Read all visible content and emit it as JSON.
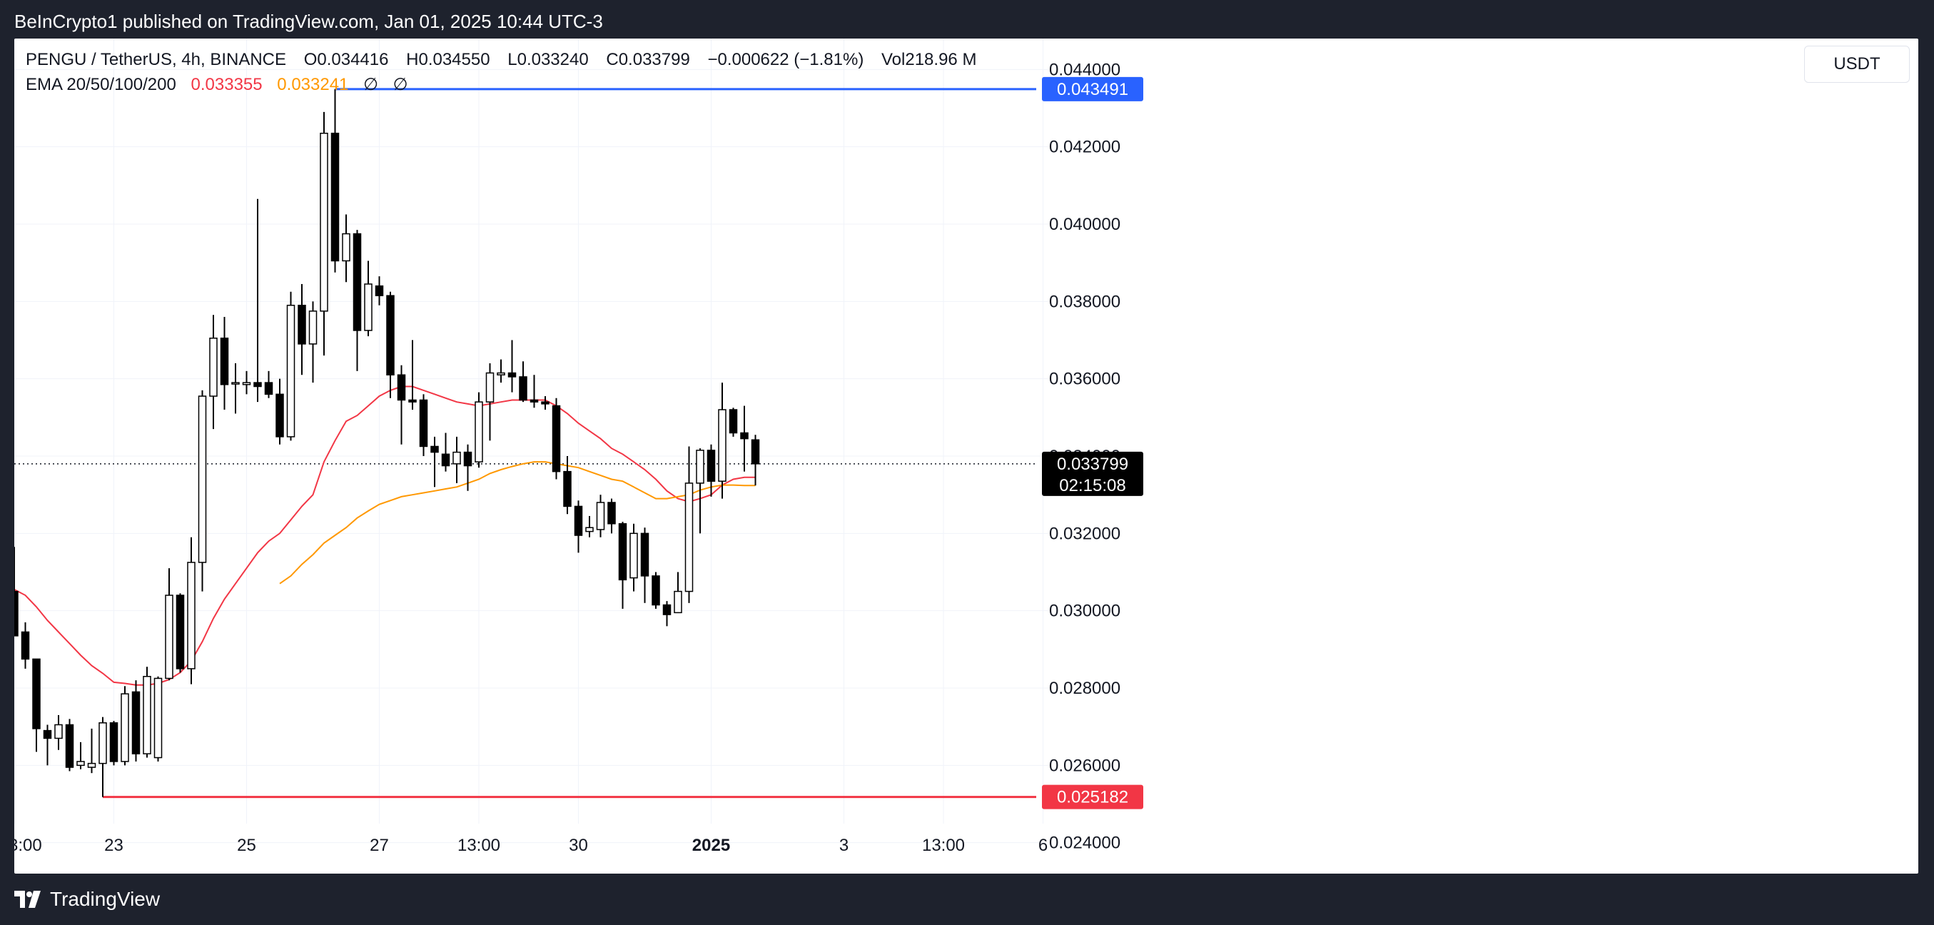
{
  "header": {
    "published": "BeInCrypto1 published on TradingView.com, Jan 01, 2025 10:44 UTC-3"
  },
  "legend": {
    "symbol": "PENGU / TetherUS, 4h, BINANCE",
    "open": "O0.034416",
    "high": "H0.034550",
    "low": "L0.033240",
    "close": "C0.033799",
    "change": "−0.000622 (−1.81%)",
    "volume": "Vol218.96 M",
    "ema_label": "EMA 20/50/100/200",
    "ema20": "0.033355",
    "ema50": "0.033241",
    "ema100": "∅",
    "ema200": "∅"
  },
  "currency": "USDT",
  "footer": {
    "brand": "TradingView"
  },
  "colors": {
    "up_body": "#ffffff",
    "down_body": "#000000",
    "candle_line": "#000000",
    "ema20": "#f23645",
    "ema50": "#ff9800",
    "resistance": "#2962ff",
    "support": "#f23645",
    "grid": "#f0f3fa"
  },
  "chart_data": {
    "type": "candlestick",
    "title": "PENGU / TetherUS, 4h, BINANCE",
    "ylim": [
      0.0232,
      0.0448
    ],
    "y_ticks": [
      "0.044000",
      "0.042000",
      "0.040000",
      "0.038000",
      "0.036000",
      "0.034000",
      "0.032000",
      "0.030000",
      "0.028000",
      "0.026000",
      "0.024000"
    ],
    "y_tick_values": [
      0.044,
      0.042,
      0.04,
      0.038,
      0.036,
      0.034,
      0.032,
      0.03,
      0.028,
      0.026,
      0.024
    ],
    "x_ticks": [
      {
        "label": "3:00",
        "bar": 0,
        "bold": false
      },
      {
        "label": "23",
        "bar": 9,
        "bold": false
      },
      {
        "label": "25",
        "bar": 21,
        "bold": false
      },
      {
        "label": "27",
        "bar": 33,
        "bold": false
      },
      {
        "label": "13:00",
        "bar": 42,
        "bold": false
      },
      {
        "label": "30",
        "bar": 51,
        "bold": false
      },
      {
        "label": "2025",
        "bar": 63,
        "bold": true
      },
      {
        "label": "3",
        "bar": 75,
        "bold": false
      },
      {
        "label": "13:00",
        "bar": 84,
        "bold": false
      },
      {
        "label": "6",
        "bar": 93,
        "bold": false
      }
    ],
    "candles": [
      {
        "o": 0.0305,
        "h": 0.03165,
        "l": 0.02935,
        "c": 0.02935
      },
      {
        "o": 0.02945,
        "h": 0.0297,
        "l": 0.0285,
        "c": 0.02875
      },
      {
        "o": 0.02875,
        "h": 0.02875,
        "l": 0.02635,
        "c": 0.02695
      },
      {
        "o": 0.0269,
        "h": 0.02705,
        "l": 0.026,
        "c": 0.0267
      },
      {
        "o": 0.0267,
        "h": 0.0273,
        "l": 0.0264,
        "c": 0.02705
      },
      {
        "o": 0.02705,
        "h": 0.0272,
        "l": 0.02585,
        "c": 0.02595
      },
      {
        "o": 0.026,
        "h": 0.0266,
        "l": 0.0259,
        "c": 0.0261
      },
      {
        "o": 0.02595,
        "h": 0.02695,
        "l": 0.0258,
        "c": 0.02605
      },
      {
        "o": 0.02605,
        "h": 0.02725,
        "l": 0.02518,
        "c": 0.0271
      },
      {
        "o": 0.0271,
        "h": 0.02715,
        "l": 0.026,
        "c": 0.0261
      },
      {
        "o": 0.0261,
        "h": 0.02805,
        "l": 0.026,
        "c": 0.02785
      },
      {
        "o": 0.0279,
        "h": 0.0282,
        "l": 0.0261,
        "c": 0.0263
      },
      {
        "o": 0.0263,
        "h": 0.02855,
        "l": 0.0262,
        "c": 0.0283
      },
      {
        "o": 0.0262,
        "h": 0.0283,
        "l": 0.0261,
        "c": 0.02825
      },
      {
        "o": 0.02825,
        "h": 0.0311,
        "l": 0.0282,
        "c": 0.0304
      },
      {
        "o": 0.0304,
        "h": 0.03045,
        "l": 0.0284,
        "c": 0.0285
      },
      {
        "o": 0.0285,
        "h": 0.0319,
        "l": 0.0281,
        "c": 0.03125
      },
      {
        "o": 0.03125,
        "h": 0.0357,
        "l": 0.0305,
        "c": 0.03555
      },
      {
        "o": 0.03555,
        "h": 0.03765,
        "l": 0.0347,
        "c": 0.03705
      },
      {
        "o": 0.03705,
        "h": 0.0376,
        "l": 0.0352,
        "c": 0.03585
      },
      {
        "o": 0.0359,
        "h": 0.0364,
        "l": 0.0351,
        "c": 0.0359
      },
      {
        "o": 0.03585,
        "h": 0.0362,
        "l": 0.0356,
        "c": 0.0359
      },
      {
        "o": 0.0359,
        "h": 0.04065,
        "l": 0.0354,
        "c": 0.0358
      },
      {
        "o": 0.0359,
        "h": 0.0362,
        "l": 0.0355,
        "c": 0.0356
      },
      {
        "o": 0.0356,
        "h": 0.036,
        "l": 0.0343,
        "c": 0.0345
      },
      {
        "o": 0.0345,
        "h": 0.03825,
        "l": 0.0344,
        "c": 0.0379
      },
      {
        "o": 0.0379,
        "h": 0.03845,
        "l": 0.0361,
        "c": 0.0369
      },
      {
        "o": 0.0369,
        "h": 0.038,
        "l": 0.0359,
        "c": 0.03775
      },
      {
        "o": 0.03775,
        "h": 0.0429,
        "l": 0.0366,
        "c": 0.04235
      },
      {
        "o": 0.04235,
        "h": 0.04349,
        "l": 0.03875,
        "c": 0.03905
      },
      {
        "o": 0.03905,
        "h": 0.04025,
        "l": 0.0385,
        "c": 0.03975
      },
      {
        "o": 0.03975,
        "h": 0.03985,
        "l": 0.0362,
        "c": 0.03725
      },
      {
        "o": 0.03725,
        "h": 0.03905,
        "l": 0.0371,
        "c": 0.03845
      },
      {
        "o": 0.0384,
        "h": 0.03865,
        "l": 0.0379,
        "c": 0.03815
      },
      {
        "o": 0.03815,
        "h": 0.03825,
        "l": 0.0355,
        "c": 0.0361
      },
      {
        "o": 0.0361,
        "h": 0.03635,
        "l": 0.0343,
        "c": 0.03545
      },
      {
        "o": 0.03545,
        "h": 0.037,
        "l": 0.0352,
        "c": 0.0354
      },
      {
        "o": 0.03545,
        "h": 0.0356,
        "l": 0.034,
        "c": 0.03425
      },
      {
        "o": 0.03425,
        "h": 0.0345,
        "l": 0.0332,
        "c": 0.0341
      },
      {
        "o": 0.03405,
        "h": 0.0346,
        "l": 0.0336,
        "c": 0.03375
      },
      {
        "o": 0.0338,
        "h": 0.0345,
        "l": 0.0333,
        "c": 0.0341
      },
      {
        "o": 0.0341,
        "h": 0.0343,
        "l": 0.0331,
        "c": 0.03375
      },
      {
        "o": 0.03385,
        "h": 0.03565,
        "l": 0.0337,
        "c": 0.0354
      },
      {
        "o": 0.0354,
        "h": 0.0364,
        "l": 0.0344,
        "c": 0.03615
      },
      {
        "o": 0.0361,
        "h": 0.0365,
        "l": 0.0359,
        "c": 0.03615
      },
      {
        "o": 0.03615,
        "h": 0.037,
        "l": 0.03565,
        "c": 0.03605
      },
      {
        "o": 0.03605,
        "h": 0.03645,
        "l": 0.0354,
        "c": 0.03545
      },
      {
        "o": 0.03545,
        "h": 0.0361,
        "l": 0.03525,
        "c": 0.0354
      },
      {
        "o": 0.0354,
        "h": 0.03555,
        "l": 0.0352,
        "c": 0.03535
      },
      {
        "o": 0.0353,
        "h": 0.0355,
        "l": 0.0334,
        "c": 0.0336
      },
      {
        "o": 0.0336,
        "h": 0.034,
        "l": 0.0325,
        "c": 0.0327
      },
      {
        "o": 0.0327,
        "h": 0.03285,
        "l": 0.0315,
        "c": 0.03195
      },
      {
        "o": 0.03205,
        "h": 0.03245,
        "l": 0.0319,
        "c": 0.03215
      },
      {
        "o": 0.0321,
        "h": 0.033,
        "l": 0.0319,
        "c": 0.0328
      },
      {
        "o": 0.0328,
        "h": 0.0329,
        "l": 0.032,
        "c": 0.03225
      },
      {
        "o": 0.03225,
        "h": 0.0323,
        "l": 0.03005,
        "c": 0.0308
      },
      {
        "o": 0.03085,
        "h": 0.03225,
        "l": 0.0305,
        "c": 0.032
      },
      {
        "o": 0.032,
        "h": 0.03215,
        "l": 0.0302,
        "c": 0.0309
      },
      {
        "o": 0.0309,
        "h": 0.031,
        "l": 0.03005,
        "c": 0.03015
      },
      {
        "o": 0.03015,
        "h": 0.03025,
        "l": 0.0296,
        "c": 0.0299
      },
      {
        "o": 0.02995,
        "h": 0.031,
        "l": 0.02995,
        "c": 0.0305
      },
      {
        "o": 0.0305,
        "h": 0.03425,
        "l": 0.0302,
        "c": 0.0333
      },
      {
        "o": 0.0333,
        "h": 0.0342,
        "l": 0.032,
        "c": 0.03415
      },
      {
        "o": 0.03415,
        "h": 0.0343,
        "l": 0.03295,
        "c": 0.03335
      },
      {
        "o": 0.03335,
        "h": 0.0359,
        "l": 0.0329,
        "c": 0.0352
      },
      {
        "o": 0.0352,
        "h": 0.03525,
        "l": 0.0345,
        "c": 0.0346
      },
      {
        "o": 0.0346,
        "h": 0.0353,
        "l": 0.0336,
        "c": 0.03445
      },
      {
        "o": 0.03442,
        "h": 0.03455,
        "l": 0.03324,
        "c": 0.0338
      }
    ],
    "series": [
      {
        "name": "EMA 20",
        "start_bar": 0,
        "values": [
          0.03055,
          0.0304,
          0.0301,
          0.02975,
          0.02945,
          0.02915,
          0.02885,
          0.02858,
          0.02838,
          0.02815,
          0.02812,
          0.02808,
          0.02808,
          0.02812,
          0.02822,
          0.0284,
          0.0287,
          0.0292,
          0.0298,
          0.0303,
          0.0307,
          0.0311,
          0.0315,
          0.0318,
          0.032,
          0.03235,
          0.0327,
          0.033,
          0.03385,
          0.0344,
          0.0349,
          0.03505,
          0.0353,
          0.03555,
          0.0357,
          0.0358,
          0.0358,
          0.0357,
          0.0356,
          0.0355,
          0.0354,
          0.03535,
          0.0353,
          0.03535,
          0.0354,
          0.03545,
          0.03545,
          0.03545,
          0.03545,
          0.0353,
          0.0351,
          0.03485,
          0.03465,
          0.03445,
          0.0342,
          0.03405,
          0.03385,
          0.03365,
          0.0334,
          0.0331,
          0.0329,
          0.03282,
          0.0329,
          0.033,
          0.03325,
          0.0334,
          0.03345,
          0.03345
        ]
      },
      {
        "name": "EMA 50",
        "start_bar": 24,
        "values": [
          0.0307,
          0.0309,
          0.0312,
          0.03145,
          0.03175,
          0.03195,
          0.03215,
          0.0324,
          0.03258,
          0.03275,
          0.03285,
          0.03295,
          0.033,
          0.03305,
          0.0331,
          0.03315,
          0.0332,
          0.0333,
          0.0334,
          0.03355,
          0.03365,
          0.03373,
          0.0338,
          0.03385,
          0.03385,
          0.0338,
          0.03375,
          0.0337,
          0.0336,
          0.0335,
          0.0334,
          0.03335,
          0.0332,
          0.03305,
          0.0329,
          0.0329,
          0.03295,
          0.033,
          0.03312,
          0.0332,
          0.03325,
          0.03325,
          0.03324,
          0.03324
        ]
      }
    ],
    "resistance": {
      "value": 0.043491,
      "label": "0.043491",
      "start_bar": 29
    },
    "support": {
      "value": 0.025182,
      "label": "0.025182",
      "start_bar": 8
    },
    "last_price": {
      "value": 0.033799,
      "label": "0.033799",
      "countdown": "02:15:08"
    }
  }
}
